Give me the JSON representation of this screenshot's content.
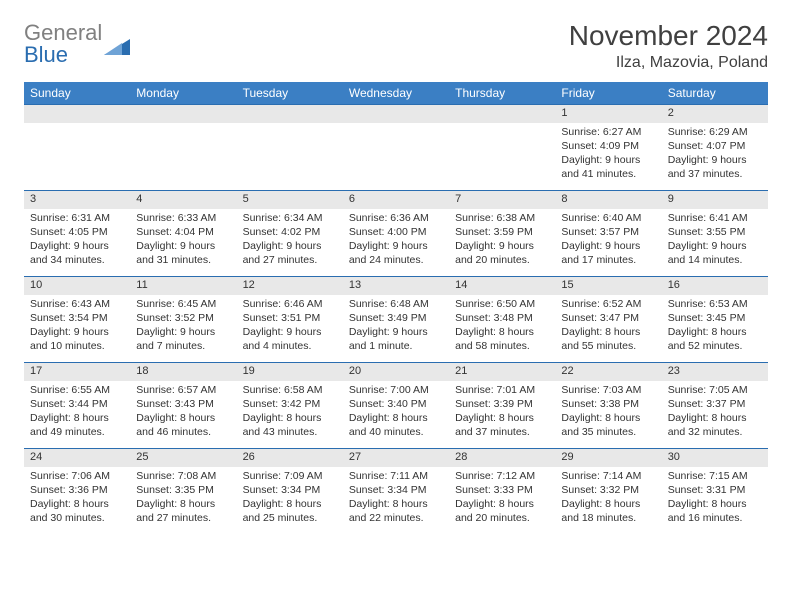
{
  "logo": {
    "word1": "General",
    "word2": "Blue"
  },
  "title": "November 2024",
  "location": "Ilza, Mazovia, Poland",
  "colors": {
    "header_bg": "#3b7fc4",
    "header_text": "#ffffff",
    "daynum_bg": "#e8e8e8",
    "border": "#2a6db0",
    "text": "#333333",
    "logo_gray": "#808080",
    "logo_blue": "#2a6db0",
    "background": "#ffffff"
  },
  "typography": {
    "title_fontsize": 28,
    "location_fontsize": 16,
    "dayheader_fontsize": 12,
    "daynum_fontsize": 11,
    "detail_fontsize": 10.5
  },
  "day_headers": [
    "Sunday",
    "Monday",
    "Tuesday",
    "Wednesday",
    "Thursday",
    "Friday",
    "Saturday"
  ],
  "weeks": [
    [
      null,
      null,
      null,
      null,
      null,
      {
        "n": "1",
        "sr": "Sunrise: 6:27 AM",
        "ss": "Sunset: 4:09 PM",
        "d1": "Daylight: 9 hours",
        "d2": "and 41 minutes."
      },
      {
        "n": "2",
        "sr": "Sunrise: 6:29 AM",
        "ss": "Sunset: 4:07 PM",
        "d1": "Daylight: 9 hours",
        "d2": "and 37 minutes."
      }
    ],
    [
      {
        "n": "3",
        "sr": "Sunrise: 6:31 AM",
        "ss": "Sunset: 4:05 PM",
        "d1": "Daylight: 9 hours",
        "d2": "and 34 minutes."
      },
      {
        "n": "4",
        "sr": "Sunrise: 6:33 AM",
        "ss": "Sunset: 4:04 PM",
        "d1": "Daylight: 9 hours",
        "d2": "and 31 minutes."
      },
      {
        "n": "5",
        "sr": "Sunrise: 6:34 AM",
        "ss": "Sunset: 4:02 PM",
        "d1": "Daylight: 9 hours",
        "d2": "and 27 minutes."
      },
      {
        "n": "6",
        "sr": "Sunrise: 6:36 AM",
        "ss": "Sunset: 4:00 PM",
        "d1": "Daylight: 9 hours",
        "d2": "and 24 minutes."
      },
      {
        "n": "7",
        "sr": "Sunrise: 6:38 AM",
        "ss": "Sunset: 3:59 PM",
        "d1": "Daylight: 9 hours",
        "d2": "and 20 minutes."
      },
      {
        "n": "8",
        "sr": "Sunrise: 6:40 AM",
        "ss": "Sunset: 3:57 PM",
        "d1": "Daylight: 9 hours",
        "d2": "and 17 minutes."
      },
      {
        "n": "9",
        "sr": "Sunrise: 6:41 AM",
        "ss": "Sunset: 3:55 PM",
        "d1": "Daylight: 9 hours",
        "d2": "and 14 minutes."
      }
    ],
    [
      {
        "n": "10",
        "sr": "Sunrise: 6:43 AM",
        "ss": "Sunset: 3:54 PM",
        "d1": "Daylight: 9 hours",
        "d2": "and 10 minutes."
      },
      {
        "n": "11",
        "sr": "Sunrise: 6:45 AM",
        "ss": "Sunset: 3:52 PM",
        "d1": "Daylight: 9 hours",
        "d2": "and 7 minutes."
      },
      {
        "n": "12",
        "sr": "Sunrise: 6:46 AM",
        "ss": "Sunset: 3:51 PM",
        "d1": "Daylight: 9 hours",
        "d2": "and 4 minutes."
      },
      {
        "n": "13",
        "sr": "Sunrise: 6:48 AM",
        "ss": "Sunset: 3:49 PM",
        "d1": "Daylight: 9 hours",
        "d2": "and 1 minute."
      },
      {
        "n": "14",
        "sr": "Sunrise: 6:50 AM",
        "ss": "Sunset: 3:48 PM",
        "d1": "Daylight: 8 hours",
        "d2": "and 58 minutes."
      },
      {
        "n": "15",
        "sr": "Sunrise: 6:52 AM",
        "ss": "Sunset: 3:47 PM",
        "d1": "Daylight: 8 hours",
        "d2": "and 55 minutes."
      },
      {
        "n": "16",
        "sr": "Sunrise: 6:53 AM",
        "ss": "Sunset: 3:45 PM",
        "d1": "Daylight: 8 hours",
        "d2": "and 52 minutes."
      }
    ],
    [
      {
        "n": "17",
        "sr": "Sunrise: 6:55 AM",
        "ss": "Sunset: 3:44 PM",
        "d1": "Daylight: 8 hours",
        "d2": "and 49 minutes."
      },
      {
        "n": "18",
        "sr": "Sunrise: 6:57 AM",
        "ss": "Sunset: 3:43 PM",
        "d1": "Daylight: 8 hours",
        "d2": "and 46 minutes."
      },
      {
        "n": "19",
        "sr": "Sunrise: 6:58 AM",
        "ss": "Sunset: 3:42 PM",
        "d1": "Daylight: 8 hours",
        "d2": "and 43 minutes."
      },
      {
        "n": "20",
        "sr": "Sunrise: 7:00 AM",
        "ss": "Sunset: 3:40 PM",
        "d1": "Daylight: 8 hours",
        "d2": "and 40 minutes."
      },
      {
        "n": "21",
        "sr": "Sunrise: 7:01 AM",
        "ss": "Sunset: 3:39 PM",
        "d1": "Daylight: 8 hours",
        "d2": "and 37 minutes."
      },
      {
        "n": "22",
        "sr": "Sunrise: 7:03 AM",
        "ss": "Sunset: 3:38 PM",
        "d1": "Daylight: 8 hours",
        "d2": "and 35 minutes."
      },
      {
        "n": "23",
        "sr": "Sunrise: 7:05 AM",
        "ss": "Sunset: 3:37 PM",
        "d1": "Daylight: 8 hours",
        "d2": "and 32 minutes."
      }
    ],
    [
      {
        "n": "24",
        "sr": "Sunrise: 7:06 AM",
        "ss": "Sunset: 3:36 PM",
        "d1": "Daylight: 8 hours",
        "d2": "and 30 minutes."
      },
      {
        "n": "25",
        "sr": "Sunrise: 7:08 AM",
        "ss": "Sunset: 3:35 PM",
        "d1": "Daylight: 8 hours",
        "d2": "and 27 minutes."
      },
      {
        "n": "26",
        "sr": "Sunrise: 7:09 AM",
        "ss": "Sunset: 3:34 PM",
        "d1": "Daylight: 8 hours",
        "d2": "and 25 minutes."
      },
      {
        "n": "27",
        "sr": "Sunrise: 7:11 AM",
        "ss": "Sunset: 3:34 PM",
        "d1": "Daylight: 8 hours",
        "d2": "and 22 minutes."
      },
      {
        "n": "28",
        "sr": "Sunrise: 7:12 AM",
        "ss": "Sunset: 3:33 PM",
        "d1": "Daylight: 8 hours",
        "d2": "and 20 minutes."
      },
      {
        "n": "29",
        "sr": "Sunrise: 7:14 AM",
        "ss": "Sunset: 3:32 PM",
        "d1": "Daylight: 8 hours",
        "d2": "and 18 minutes."
      },
      {
        "n": "30",
        "sr": "Sunrise: 7:15 AM",
        "ss": "Sunset: 3:31 PM",
        "d1": "Daylight: 8 hours",
        "d2": "and 16 minutes."
      }
    ]
  ]
}
